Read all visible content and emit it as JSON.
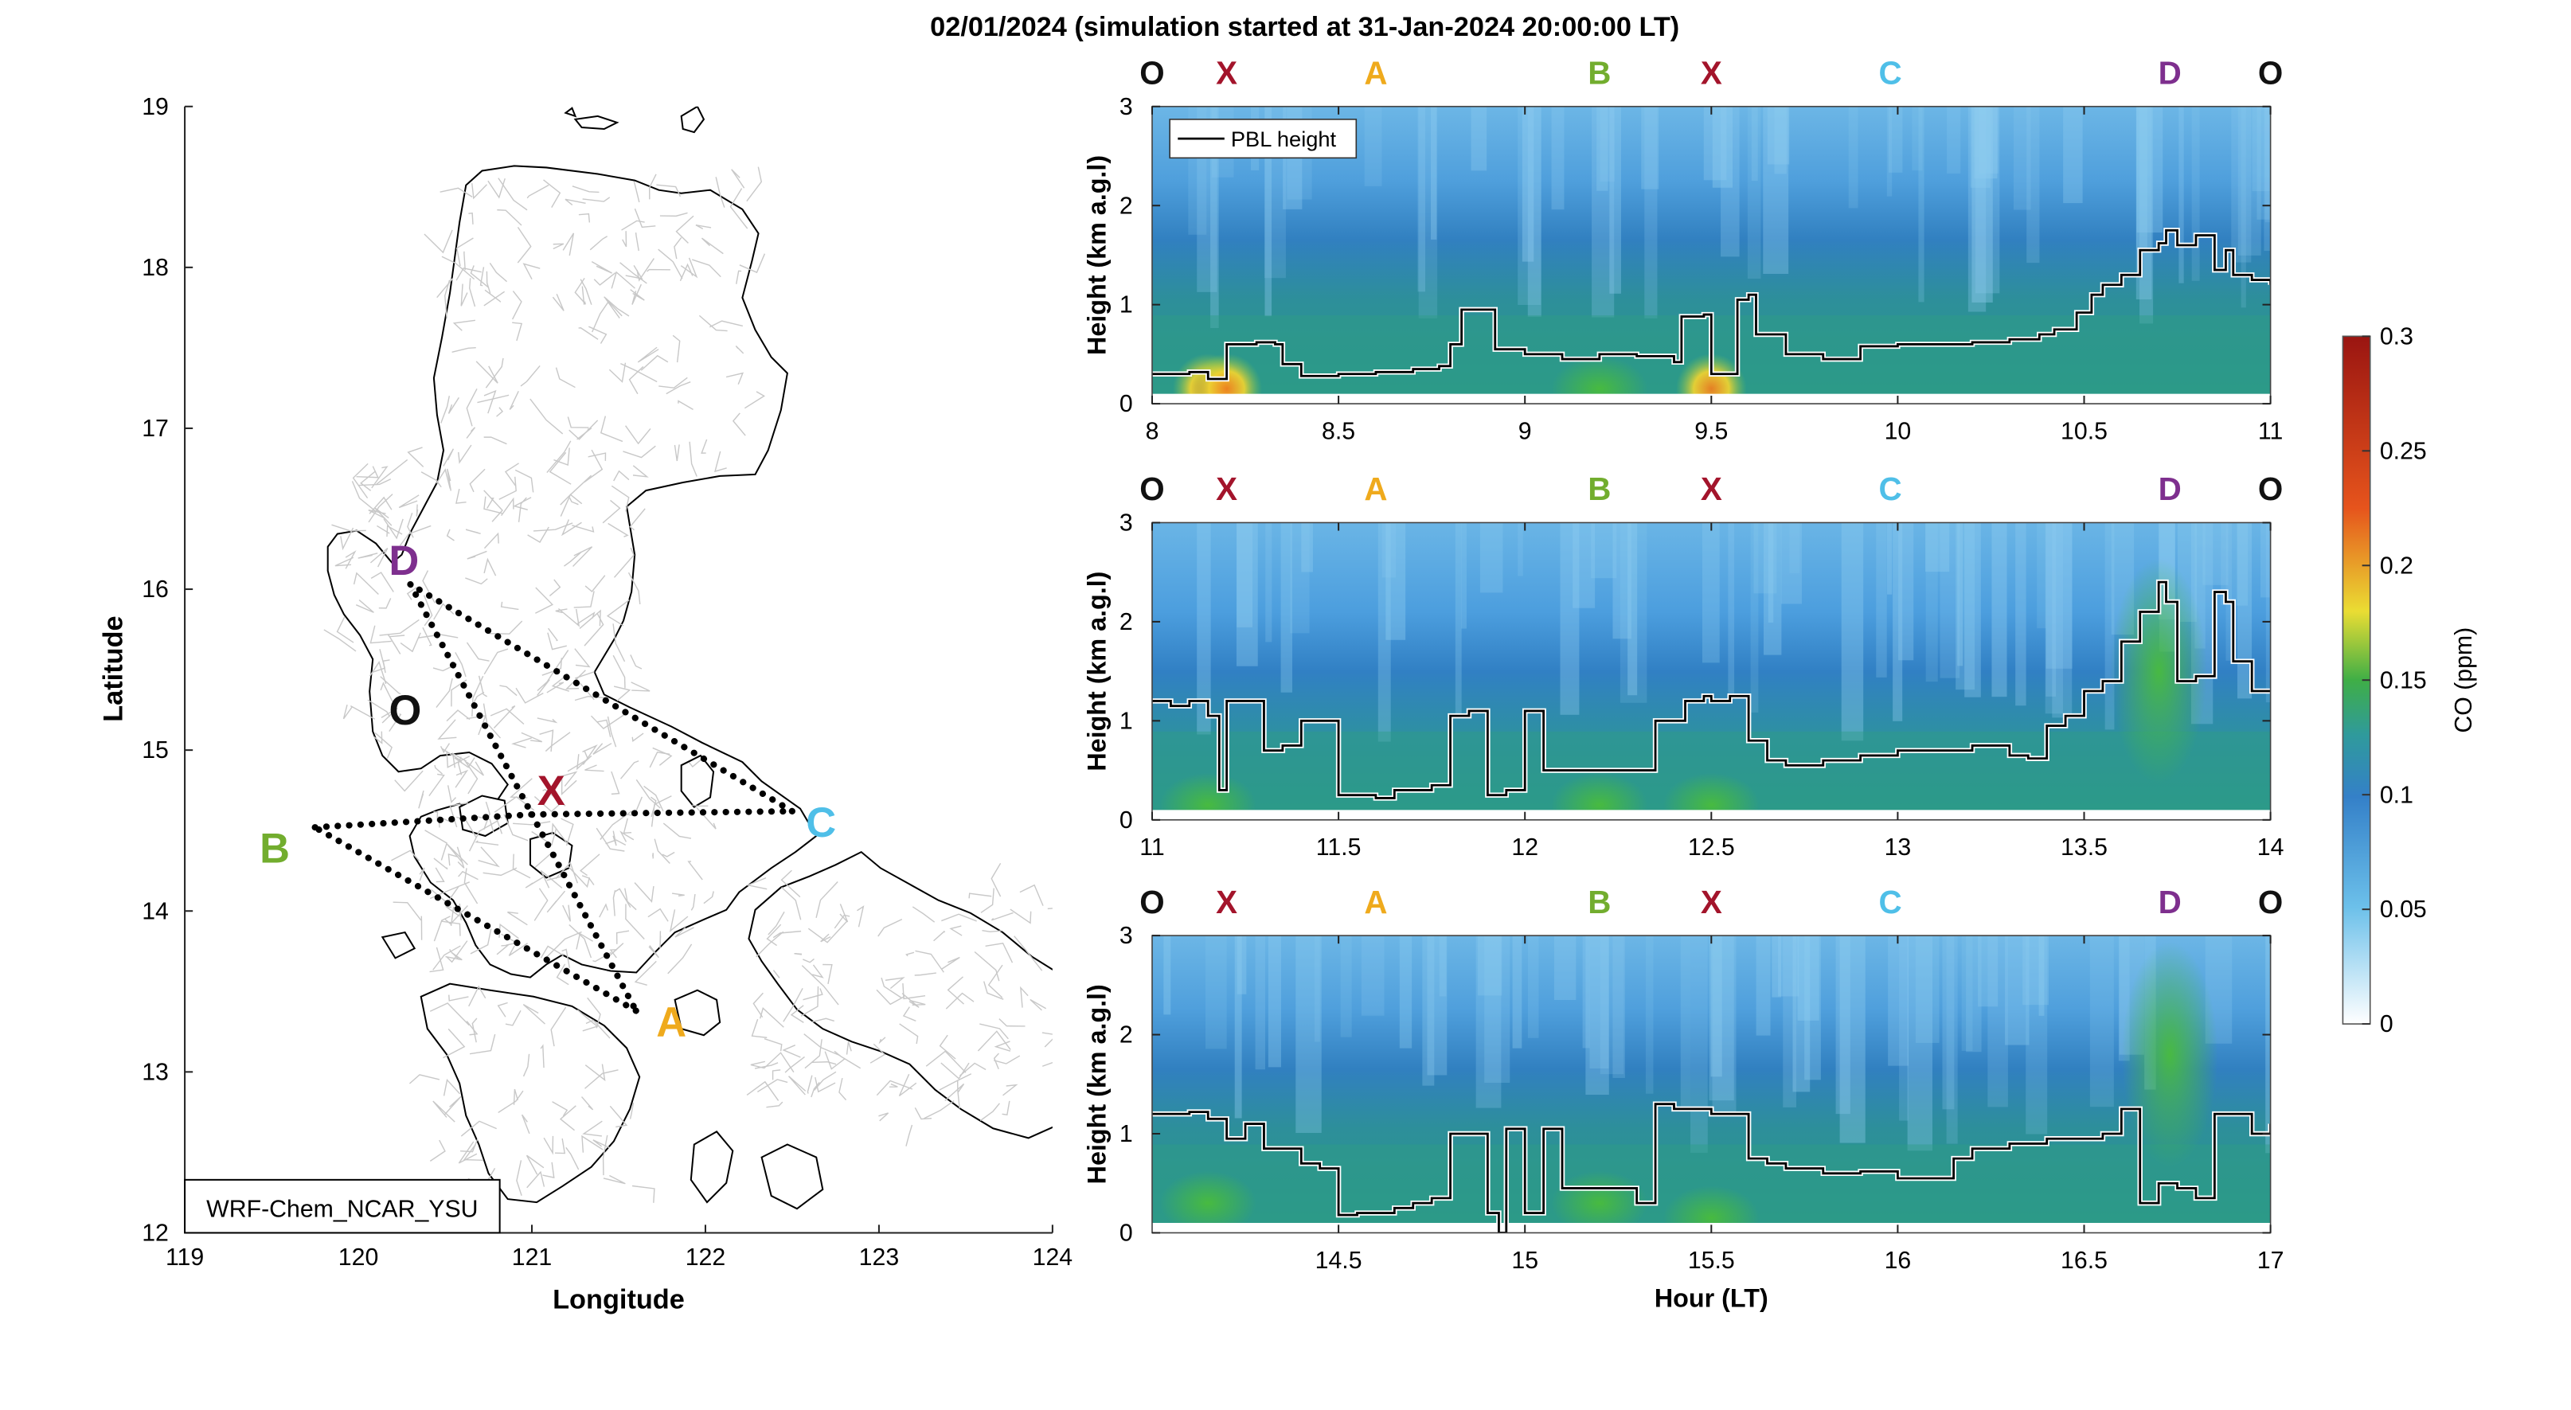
{
  "figure": {
    "title": "02/01/2024 (simulation started at 31-Jan-2024 20:00:00 LT)"
  },
  "colors": {
    "O": "#111111",
    "X": "#a3142b",
    "A": "#efaa1c",
    "B": "#72ad2e",
    "C": "#4fbfe8",
    "D": "#7e2f8e",
    "pbl": "#000000",
    "grid_boundary": "#c8c8c8",
    "coast": "#000000"
  },
  "map": {
    "xlabel": "Longitude",
    "ylabel": "Latitude",
    "xlim": [
      119,
      124
    ],
    "ylim": [
      12,
      19
    ],
    "xticks": [
      "119",
      "120",
      "121",
      "122",
      "123",
      "124"
    ],
    "yticks": [
      "12",
      "13",
      "14",
      "15",
      "16",
      "17",
      "18",
      "19"
    ],
    "model_label": "WRF-Chem_NCAR_YSU",
    "points": [
      {
        "id": "O",
        "lon": 120.27,
        "lat": 15.2
      },
      {
        "id": "X",
        "lon": 121.0,
        "lat": 14.6
      },
      {
        "id": "A",
        "lon": 121.6,
        "lat": 13.38
      },
      {
        "id": "B",
        "lon": 119.75,
        "lat": 14.52
      },
      {
        "id": "C",
        "lon": 122.5,
        "lat": 14.62
      },
      {
        "id": "D",
        "lon": 120.3,
        "lat": 16.03
      }
    ],
    "route": [
      "D",
      "X",
      "A",
      "B",
      "X",
      "C",
      "D"
    ]
  },
  "panels": {
    "ylabel": "Height (km a.g.l)",
    "xlabel": "Hour (LT)",
    "legend": "PBL height",
    "point_label_order": [
      "O",
      "X",
      "A",
      "B",
      "X",
      "C",
      "D",
      "O"
    ],
    "yticks": [
      "0",
      "1",
      "2",
      "3"
    ],
    "ylim": [
      0,
      3
    ]
  },
  "colorbar": {
    "label": "CO (ppm)",
    "ticks": [
      "0",
      "0.05",
      "0.1",
      "0.15",
      "0.2",
      "0.25",
      "0.3"
    ],
    "range": [
      0,
      0.3
    ]
  },
  "chart_data": [
    {
      "type": "heatmap",
      "name": "panel-1",
      "xlim": [
        8,
        11
      ],
      "xticks": [
        "8",
        "8.5",
        "9",
        "9.5",
        "10",
        "10.5",
        "11"
      ],
      "x_point_labels": [
        8.0,
        8.2,
        8.6,
        9.2,
        9.5,
        9.98,
        10.73,
        11.0
      ],
      "pbl_height": {
        "x": [
          8.0,
          8.1,
          8.15,
          8.2,
          8.28,
          8.33,
          8.35,
          8.4,
          8.5,
          8.6,
          8.7,
          8.77,
          8.8,
          8.83,
          8.87,
          8.92,
          9.0,
          9.1,
          9.2,
          9.3,
          9.4,
          9.42,
          9.48,
          9.5,
          9.55,
          9.57,
          9.6,
          9.62,
          9.7,
          9.8,
          9.9,
          10.0,
          10.2,
          10.3,
          10.38,
          10.42,
          10.48,
          10.52,
          10.55,
          10.6,
          10.65,
          10.7,
          10.72,
          10.75,
          10.8,
          10.85,
          10.88,
          10.9,
          10.95,
          11.0
        ],
        "y": [
          0.3,
          0.32,
          0.25,
          0.6,
          0.62,
          0.6,
          0.4,
          0.28,
          0.3,
          0.32,
          0.35,
          0.38,
          0.6,
          0.95,
          0.95,
          0.55,
          0.5,
          0.45,
          0.5,
          0.48,
          0.42,
          0.88,
          0.9,
          0.3,
          0.3,
          1.05,
          1.1,
          0.7,
          0.5,
          0.45,
          0.58,
          0.6,
          0.62,
          0.65,
          0.7,
          0.75,
          0.92,
          1.1,
          1.2,
          1.3,
          1.55,
          1.62,
          1.75,
          1.6,
          1.7,
          1.35,
          1.55,
          1.3,
          1.25,
          1.2
        ]
      },
      "co_hotspots": [
        {
          "x": 8.15,
          "y": 0.15,
          "co": 0.19
        },
        {
          "x": 8.2,
          "y": 0.15,
          "co": 0.2
        },
        {
          "x": 9.5,
          "y": 0.15,
          "co": 0.17
        },
        {
          "x": 9.2,
          "y": 0.15,
          "co": 0.14
        }
      ]
    },
    {
      "type": "heatmap",
      "name": "panel-2",
      "xlim": [
        11,
        14
      ],
      "xticks": [
        "11",
        "11.5",
        "12",
        "12.5",
        "13",
        "13.5",
        "14"
      ],
      "x_point_labels": [
        11.0,
        11.2,
        11.6,
        12.2,
        12.5,
        12.98,
        13.73,
        14.0
      ],
      "pbl_height": {
        "x": [
          11.0,
          11.05,
          11.1,
          11.15,
          11.18,
          11.2,
          11.25,
          11.3,
          11.35,
          11.4,
          11.45,
          11.5,
          11.55,
          11.6,
          11.65,
          11.75,
          11.8,
          11.85,
          11.9,
          11.95,
          12.0,
          12.05,
          12.1,
          12.3,
          12.35,
          12.38,
          12.43,
          12.48,
          12.5,
          12.55,
          12.6,
          12.65,
          12.7,
          12.8,
          12.9,
          13.0,
          13.1,
          13.2,
          13.3,
          13.35,
          13.4,
          13.45,
          13.5,
          13.55,
          13.6,
          13.65,
          13.7,
          13.72,
          13.75,
          13.8,
          13.85,
          13.88,
          13.9,
          13.95,
          14.0
        ],
        "y": [
          1.2,
          1.15,
          1.2,
          1.05,
          0.3,
          1.2,
          1.2,
          0.7,
          0.75,
          1.0,
          1.0,
          0.25,
          0.25,
          0.22,
          0.3,
          0.35,
          1.05,
          1.1,
          0.25,
          0.3,
          1.1,
          0.5,
          0.5,
          0.5,
          1.0,
          1.0,
          1.2,
          1.25,
          1.2,
          1.25,
          0.8,
          0.6,
          0.55,
          0.6,
          0.65,
          0.7,
          0.7,
          0.75,
          0.65,
          0.62,
          0.95,
          1.05,
          1.3,
          1.4,
          1.8,
          2.1,
          2.4,
          2.2,
          1.4,
          1.45,
          2.3,
          2.2,
          1.6,
          1.3,
          1.3
        ]
      },
      "co_hotspots": [
        {
          "x": 11.15,
          "y": 0.15,
          "co": 0.14
        },
        {
          "x": 12.2,
          "y": 0.15,
          "co": 0.14
        },
        {
          "x": 12.5,
          "y": 0.15,
          "co": 0.15
        },
        {
          "x": 13.7,
          "y": 1.5,
          "co": 0.12
        }
      ]
    },
    {
      "type": "heatmap",
      "name": "panel-3",
      "xlim": [
        14,
        17
      ],
      "xticks": [
        "14.5",
        "15",
        "15.5",
        "16",
        "16.5",
        "17"
      ],
      "x_point_labels": [
        14.0,
        14.2,
        14.6,
        15.2,
        15.5,
        15.98,
        16.73,
        17.0
      ],
      "pbl_height": {
        "x": [
          14.0,
          14.05,
          14.1,
          14.15,
          14.2,
          14.25,
          14.3,
          14.35,
          14.4,
          14.45,
          14.5,
          14.55,
          14.6,
          14.65,
          14.7,
          14.75,
          14.8,
          14.85,
          14.9,
          14.93,
          14.95,
          15.0,
          15.05,
          15.1,
          15.2,
          15.3,
          15.35,
          15.4,
          15.5,
          15.55,
          15.6,
          15.65,
          15.7,
          15.8,
          15.9,
          16.0,
          16.1,
          16.15,
          16.2,
          16.3,
          16.4,
          16.5,
          16.55,
          16.6,
          16.65,
          16.68,
          16.7,
          16.75,
          16.8,
          16.85,
          16.9,
          16.95,
          17.0
        ],
        "y": [
          1.2,
          1.2,
          1.22,
          1.15,
          0.95,
          1.1,
          0.85,
          0.85,
          0.7,
          0.65,
          0.18,
          0.2,
          0.2,
          0.25,
          0.3,
          0.35,
          1.0,
          1.0,
          0.2,
          0.0,
          1.05,
          0.2,
          1.05,
          0.45,
          0.45,
          0.3,
          1.3,
          1.25,
          1.2,
          1.2,
          0.75,
          0.7,
          0.65,
          0.6,
          0.62,
          0.55,
          0.55,
          0.75,
          0.85,
          0.9,
          0.95,
          0.95,
          1.0,
          1.25,
          0.3,
          0.3,
          0.5,
          0.45,
          0.35,
          1.2,
          1.2,
          1.0,
          1.1
        ]
      },
      "co_hotspots": [
        {
          "x": 14.15,
          "y": 0.3,
          "co": 0.14
        },
        {
          "x": 15.5,
          "y": 0.15,
          "co": 0.15
        },
        {
          "x": 16.73,
          "y": 1.8,
          "co": 0.13
        },
        {
          "x": 15.2,
          "y": 0.3,
          "co": 0.13
        }
      ]
    }
  ]
}
